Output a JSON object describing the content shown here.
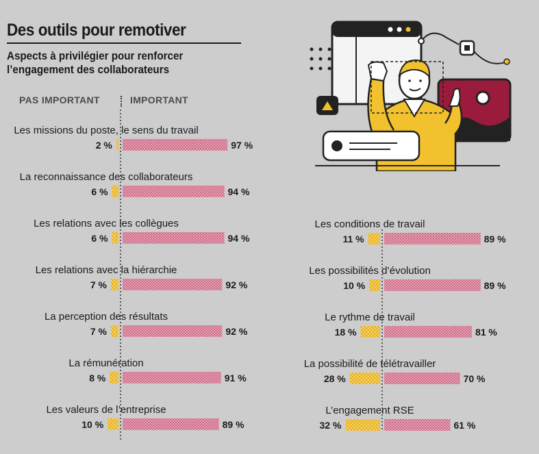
{
  "title": "Des outils pour remotiver",
  "subtitle": "Aspects à privilégier pour renforcer l’engagement des collaborateurs",
  "headers": {
    "left": "PAS IMPORTANT",
    "right": "IMPORTANT"
  },
  "colors": {
    "important": "#c8496a",
    "not_important": "#f2c12e",
    "background": "#cdcdcd"
  },
  "chart_data": [
    {
      "type": "bar",
      "orientation": "diverging-horizontal",
      "title": "",
      "xlabel": "",
      "ylabel": "",
      "legend": [
        "PAS IMPORTANT",
        "IMPORTANT"
      ],
      "series": [
        {
          "name": "PAS IMPORTANT",
          "values": [
            2,
            6,
            6,
            7,
            7,
            8,
            10
          ]
        },
        {
          "name": "IMPORTANT",
          "values": [
            97,
            94,
            94,
            92,
            92,
            91,
            89
          ]
        }
      ],
      "categories": [
        "Les missions du poste, le sens du travail",
        "La reconnaissance des collaborateurs",
        "Les relations avec les collègues",
        "Les relations avec la hiérarchie",
        "La perception des résultats",
        "La rémunération",
        "Les valeurs de l’entreprise"
      ],
      "grid": false
    },
    {
      "type": "bar",
      "orientation": "diverging-horizontal",
      "title": "",
      "xlabel": "",
      "ylabel": "",
      "series": [
        {
          "name": "PAS IMPORTANT",
          "values": [
            11,
            10,
            18,
            28,
            32
          ]
        },
        {
          "name": "IMPORTANT",
          "values": [
            89,
            89,
            81,
            70,
            61
          ]
        }
      ],
      "categories": [
        "Les conditions de travail",
        "Les possibilités d’évolution",
        "Le rythme de travail",
        "La possibilité de télétravailler",
        "L’engagement RSE"
      ],
      "grid": false
    }
  ]
}
